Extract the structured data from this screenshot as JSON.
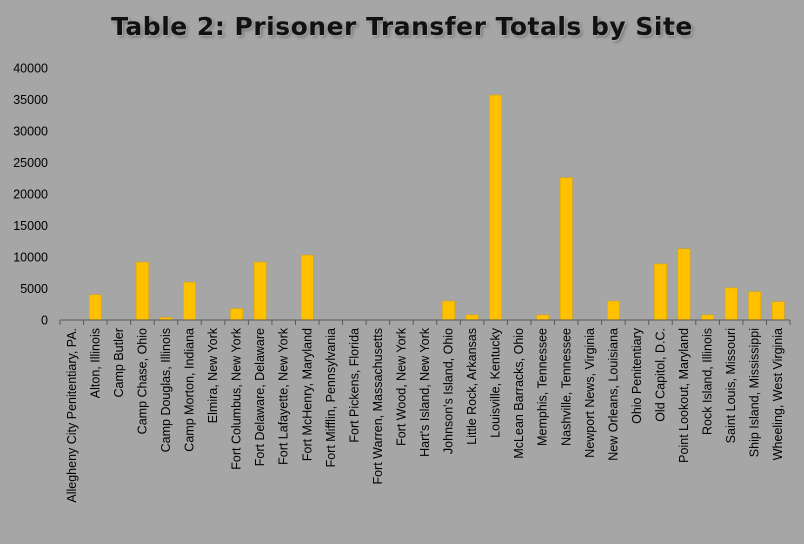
{
  "colors": {
    "background": "#a6a6a6",
    "bar": "#ffc000",
    "bar_edge": "#d9a400",
    "axis": "#595959"
  },
  "chart_data": {
    "type": "bar",
    "title": "Table 2: Prisoner Transfer Totals by Site",
    "xlabel": "",
    "ylabel": "",
    "ylim": [
      0,
      40000
    ],
    "yticks": [
      0,
      5000,
      10000,
      15000,
      20000,
      25000,
      30000,
      35000,
      40000
    ],
    "grid": false,
    "legend": "none",
    "categories": [
      "Allegheny City Penitentiary, PA.",
      "Alton, Illinois",
      "Camp Butler",
      "Camp Chase, Ohio",
      "Camp Douglas, Illinois",
      "Camp Morton, Indiana",
      "Elmira, New York",
      "Fort Columbus, New York",
      "Fort Delaware, Delaware",
      "Fort Lafayette, New York",
      "Fort McHenry, Maryland",
      "Fort Mifflin, Pennsylvania",
      "Fort Pickens, Florida",
      "Fort Warren, Massachusetts",
      "Fort Wood, New York",
      "Hart's Island, New York",
      "Johnson's Island, Ohio",
      "Little Rock, Arkansas",
      "Louisville, Kentucky",
      "McLean Barracks, Ohio",
      "Memphis, Tennessee",
      "Nashville, Tennessee",
      "Newport News, Virginia",
      "New Orleans, Louisiana",
      "Ohio Penitentiary",
      "Old Capitol, D.C.",
      "Point Lookout, Maryland",
      "Rock Island, Illinois",
      "Saint Louis, Missouri",
      "Ship Island, Mississippi",
      "Wheeling, West Virginia"
    ],
    "values": [
      0,
      4000,
      0,
      9200,
      400,
      6000,
      0,
      1800,
      9200,
      0,
      10300,
      0,
      0,
      0,
      0,
      0,
      3000,
      800,
      35700,
      0,
      800,
      22600,
      0,
      3000,
      0,
      8900,
      11300,
      800,
      5100,
      4500,
      2900
    ]
  }
}
